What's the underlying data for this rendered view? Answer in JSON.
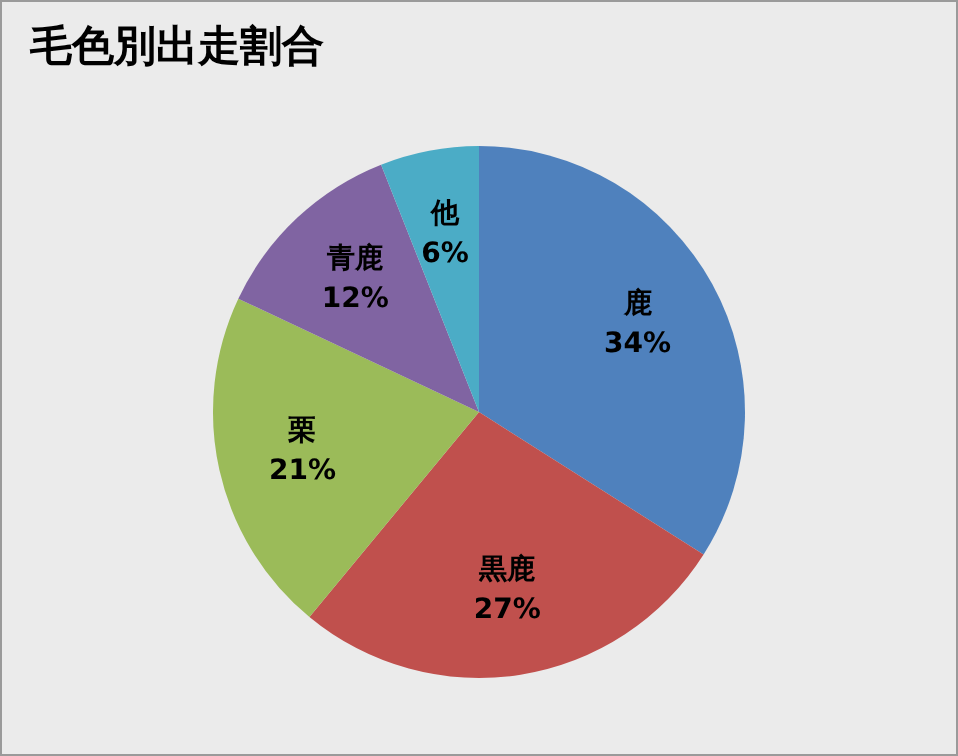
{
  "chart_data": {
    "type": "pie",
    "title": "毛色別出走割合",
    "categories": [
      "鹿",
      "黒鹿",
      "栗",
      "青鹿",
      "他"
    ],
    "values": [
      34,
      27,
      21,
      12,
      6
    ],
    "colors": [
      "#4f81bd",
      "#c0504d",
      "#9bbb59",
      "#8064a2",
      "#4bacc6"
    ],
    "value_labels": [
      "34%",
      "27%",
      "21%",
      "12%",
      "6%"
    ],
    "legend": false
  }
}
